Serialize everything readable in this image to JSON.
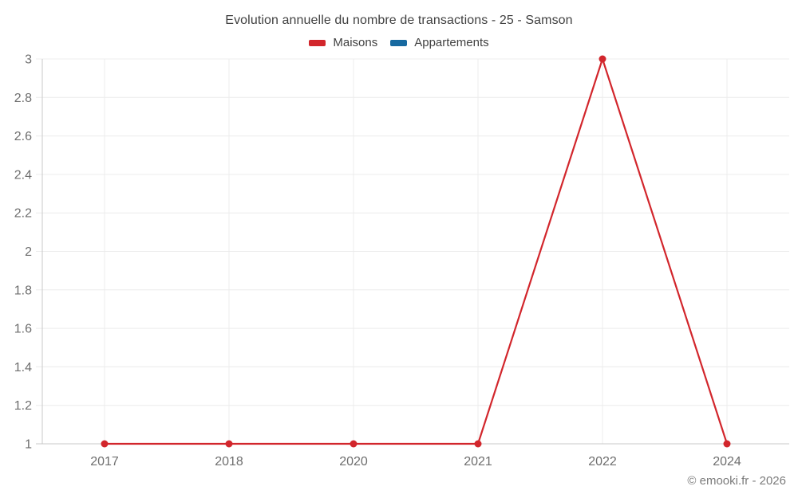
{
  "title": "Evolution annuelle du nombre de transactions - 25 - Samson",
  "legend": {
    "items": [
      {
        "label": "Maisons",
        "color": "#d2262c"
      },
      {
        "label": "Appartements",
        "color": "#1769a0"
      }
    ]
  },
  "footer": {
    "credit": "© emooki.fr - 2026"
  },
  "chart_data": {
    "type": "line",
    "title": "Evolution annuelle du nombre de transactions - 25 - Samson",
    "categories": [
      "2017",
      "2018",
      "2020",
      "2021",
      "2022",
      "2024"
    ],
    "series": [
      {
        "name": "Maisons",
        "color": "#d2262c",
        "values": [
          1,
          1,
          1,
          1,
          3,
          1
        ]
      },
      {
        "name": "Appartements",
        "color": "#1769a0",
        "values": []
      }
    ],
    "xlabel": "",
    "ylabel": "",
    "ylim": [
      1,
      3
    ],
    "yticks": [
      1,
      1.2,
      1.4,
      1.6,
      1.8,
      2,
      2.2,
      2.4,
      2.6,
      2.8,
      3
    ],
    "ytick_labels": [
      "1",
      "1.2",
      "1.4",
      "1.6",
      "1.8",
      "2",
      "2.2",
      "2.4",
      "2.6",
      "2.8",
      "3"
    ],
    "grid": true,
    "legend_position": "top",
    "colors": {
      "grid_line": "#ececec",
      "axis_border": "#c9c9c9",
      "tick_label": "#6e6e6e",
      "title_text": "#414141",
      "background": "#ffffff"
    }
  }
}
